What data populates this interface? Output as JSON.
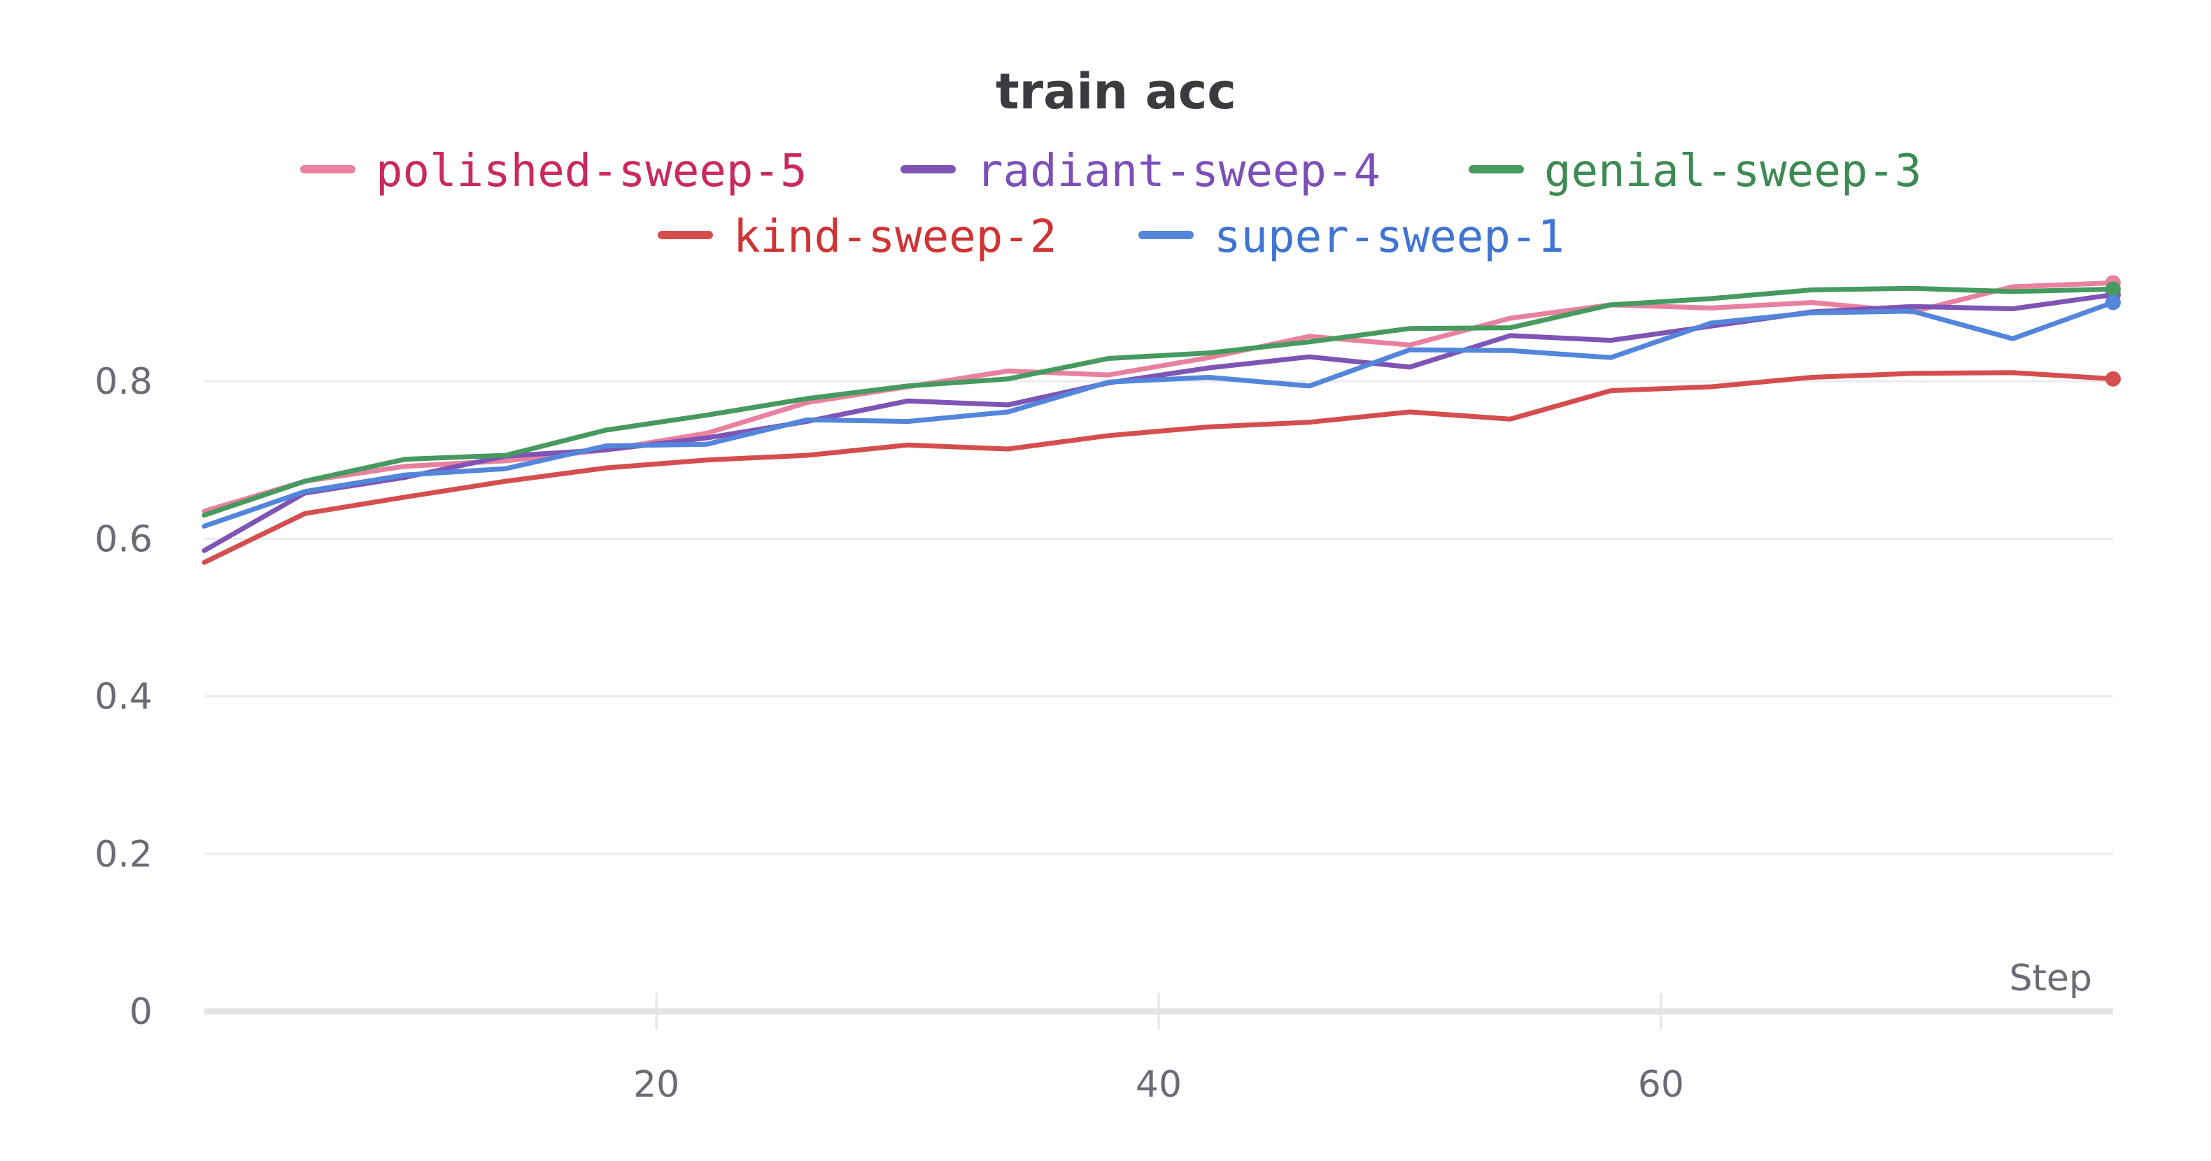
{
  "chart_data": {
    "type": "line",
    "title": "train acc",
    "xlabel": "Step",
    "ylabel": "",
    "xlim": [
      2,
      78
    ],
    "ylim": [
      0,
      0.92
    ],
    "x_ticks": [
      "20",
      "40",
      "60"
    ],
    "y_ticks": [
      "0",
      "0.2",
      "0.4",
      "0.6",
      "0.8"
    ],
    "grid": true,
    "legend_position": "top",
    "x": [
      2,
      6,
      10,
      14,
      18,
      22,
      26,
      30,
      34,
      38,
      42,
      46,
      50,
      54,
      58,
      62,
      66,
      70,
      74,
      78
    ],
    "series": [
      {
        "name": "polished-sweep-5",
        "color": "#e8819f",
        "values": [
          0.635,
          0.673,
          0.692,
          0.699,
          0.713,
          0.734,
          0.773,
          0.793,
          0.813,
          0.808,
          0.83,
          0.857,
          0.846,
          0.88,
          0.897,
          0.893,
          0.9,
          0.888,
          0.92,
          0.925
        ]
      },
      {
        "name": "radiant-sweep-4",
        "color": "#7e54b5",
        "values": [
          0.585,
          0.658,
          0.678,
          0.705,
          0.713,
          0.728,
          0.749,
          0.775,
          0.77,
          0.798,
          0.817,
          0.831,
          0.818,
          0.858,
          0.852,
          0.87,
          0.888,
          0.895,
          0.892,
          0.91
        ]
      },
      {
        "name": "genial-sweep-3",
        "color": "#479a5f",
        "values": [
          0.63,
          0.673,
          0.701,
          0.706,
          0.738,
          0.757,
          0.778,
          0.794,
          0.803,
          0.829,
          0.836,
          0.85,
          0.867,
          0.868,
          0.897,
          0.905,
          0.916,
          0.918,
          0.914,
          0.917
        ]
      },
      {
        "name": "kind-sweep-2",
        "color": "#d54e4e",
        "values": [
          0.57,
          0.632,
          0.653,
          0.673,
          0.69,
          0.7,
          0.706,
          0.719,
          0.714,
          0.731,
          0.742,
          0.748,
          0.761,
          0.752,
          0.788,
          0.793,
          0.805,
          0.81,
          0.811,
          0.803
        ]
      },
      {
        "name": "super-sweep-1",
        "color": "#5386db",
        "values": [
          0.616,
          0.66,
          0.681,
          0.689,
          0.718,
          0.72,
          0.751,
          0.749,
          0.761,
          0.799,
          0.805,
          0.794,
          0.84,
          0.839,
          0.83,
          0.874,
          0.887,
          0.889,
          0.854,
          0.9
        ]
      }
    ],
    "legend": [
      {
        "name": "polished-sweep-5",
        "color": "#e8819f",
        "text_color": "#c9295f"
      },
      {
        "name": "radiant-sweep-4",
        "color": "#7e54b5",
        "text_color": "#7c4fb8"
      },
      {
        "name": "genial-sweep-3",
        "color": "#479a5f",
        "text_color": "#3d8a52"
      },
      {
        "name": "kind-sweep-2",
        "color": "#d54e4e",
        "text_color": "#cf3434"
      },
      {
        "name": "super-sweep-1",
        "color": "#5386db",
        "text_color": "#3f74d2"
      }
    ]
  }
}
